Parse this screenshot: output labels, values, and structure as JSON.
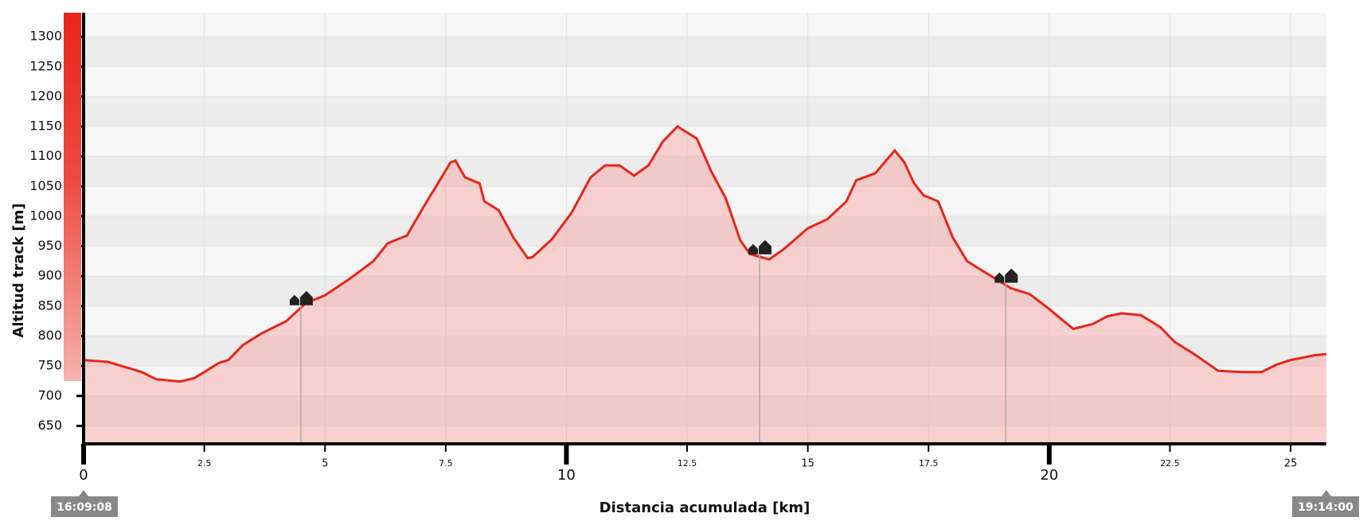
{
  "chart_data": {
    "type": "area",
    "y_label": "Altitud track [m]",
    "x_label": "Distancia acumulada [km]",
    "start_label": "16:09:08",
    "end_label": "19:14:00",
    "color": "#e8251a",
    "x": [
      0,
      0.5,
      1,
      1.2,
      1.5,
      2,
      2.3,
      2.5,
      2.8,
      3,
      3.3,
      3.7,
      4.2,
      4.6,
      5,
      5.5,
      6,
      6.3,
      6.7,
      7,
      7.3,
      7.6,
      7.7,
      7.9,
      8.2,
      8.3,
      8.6,
      8.9,
      9.2,
      9.3,
      9.7,
      10.1,
      10.5,
      10.8,
      11.1,
      11.4,
      11.7,
      12,
      12.3,
      12.7,
      13,
      13.3,
      13.6,
      13.8,
      14.2,
      14.5,
      15,
      15.4,
      15.8,
      16,
      16.4,
      16.8,
      17,
      17.2,
      17.4,
      17.7,
      18,
      18.3,
      18.7,
      19.2,
      19.6,
      20,
      20.3,
      20.5,
      20.9,
      21.2,
      21.5,
      21.9,
      22.3,
      22.6,
      23,
      23.5,
      24,
      24.4,
      24.7,
      25,
      25.5,
      25.74
    ],
    "values": [
      760,
      757,
      745,
      740,
      728,
      724,
      730,
      740,
      755,
      760,
      785,
      805,
      825,
      855,
      868,
      895,
      925,
      955,
      968,
      1010,
      1050,
      1090,
      1093,
      1065,
      1055,
      1025,
      1010,
      965,
      930,
      932,
      962,
      1005,
      1065,
      1085,
      1085,
      1068,
      1085,
      1125,
      1150,
      1130,
      1075,
      1030,
      960,
      937,
      928,
      945,
      980,
      995,
      1025,
      1060,
      1072,
      1110,
      1090,
      1055,
      1035,
      1025,
      965,
      925,
      905,
      880,
      870,
      845,
      825,
      812,
      820,
      833,
      838,
      835,
      815,
      790,
      770,
      742,
      740,
      740,
      752,
      760,
      768,
      770
    ],
    "waypoints_x": [
      4.5,
      14.0,
      19.1
    ],
    "xlim": [
      0,
      25.74
    ],
    "ylim": [
      620,
      1340
    ],
    "xticks": [
      0,
      2.5,
      5,
      7.5,
      10,
      12.5,
      15,
      17.5,
      20,
      22.5,
      25
    ],
    "yticks": [
      650,
      700,
      750,
      800,
      850,
      900,
      950,
      1000,
      1050,
      1100,
      1150,
      1200,
      1250,
      1300
    ]
  }
}
